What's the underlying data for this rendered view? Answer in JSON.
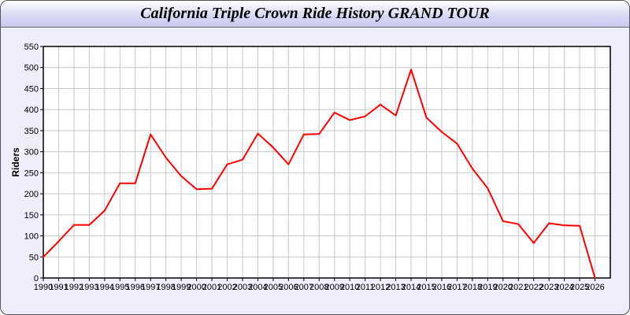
{
  "chart_data": {
    "type": "line",
    "title": "California Triple Crown Ride History GRAND TOUR",
    "xlabel": "",
    "ylabel": "Riders",
    "ylim": [
      0,
      550
    ],
    "yticks": [
      0,
      50,
      100,
      150,
      200,
      250,
      300,
      350,
      400,
      450,
      500,
      550
    ],
    "xlim": [
      1990,
      2027
    ],
    "grid": true,
    "line_color": "#ff0000",
    "series": [
      {
        "x": [
          1990,
          1991,
          1992,
          1993,
          1994,
          1995,
          1996,
          1997,
          1998,
          1999,
          2000,
          2001,
          2002,
          2003,
          2004,
          2005,
          2006,
          2007,
          2008,
          2009,
          2010,
          2011,
          2012,
          2013,
          2014,
          2015,
          2016,
          2017,
          2018,
          2019,
          2020,
          2021,
          2022,
          2023,
          2024,
          2025,
          2026
        ],
        "values": [
          50,
          87,
          126,
          126,
          160,
          225,
          225,
          341,
          286,
          242,
          211,
          212,
          270,
          281,
          343,
          310,
          270,
          341,
          342,
          393,
          375,
          384,
          412,
          386,
          495,
          381,
          347,
          319,
          260,
          213,
          135,
          128,
          83,
          130,
          125,
          124,
          0
        ]
      }
    ]
  }
}
